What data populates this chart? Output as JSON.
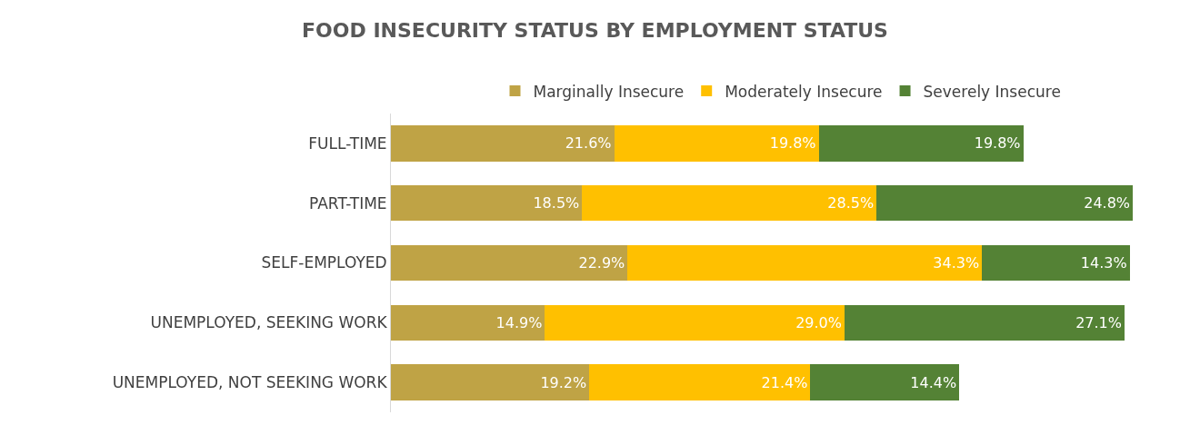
{
  "chart_data": {
    "type": "bar",
    "orientation": "horizontal",
    "stacked": true,
    "title": "FOOD INSECURITY STATUS BY EMPLOYMENT STATUS",
    "categories": [
      "FULL-TIME",
      "PART-TIME",
      "SELF-EMPLOYED",
      "UNEMPLOYED, SEEKING WORK",
      "UNEMPLOYED, NOT SEEKING WORK"
    ],
    "series": [
      {
        "name": "Marginally Insecure",
        "color": "#bfa345",
        "values": [
          21.6,
          18.5,
          22.9,
          14.9,
          19.2
        ],
        "value_labels": [
          "21.6%",
          "18.5%",
          "22.9%",
          "14.9%",
          "19.2%"
        ]
      },
      {
        "name": "Moderately Insecure",
        "color": "#ffc000",
        "values": [
          19.8,
          28.5,
          34.3,
          29.0,
          21.4
        ],
        "value_labels": [
          "19.8%",
          "28.5%",
          "34.3%",
          "29.0%",
          "21.4%"
        ]
      },
      {
        "name": "Severely Insecure",
        "color": "#548235",
        "values": [
          19.8,
          24.8,
          14.3,
          27.1,
          14.4
        ],
        "value_labels": [
          "19.8%",
          "24.8%",
          "14.3%",
          "27.1%",
          "14.4%"
        ]
      }
    ],
    "legend": "top",
    "tick_labels": "y"
  }
}
